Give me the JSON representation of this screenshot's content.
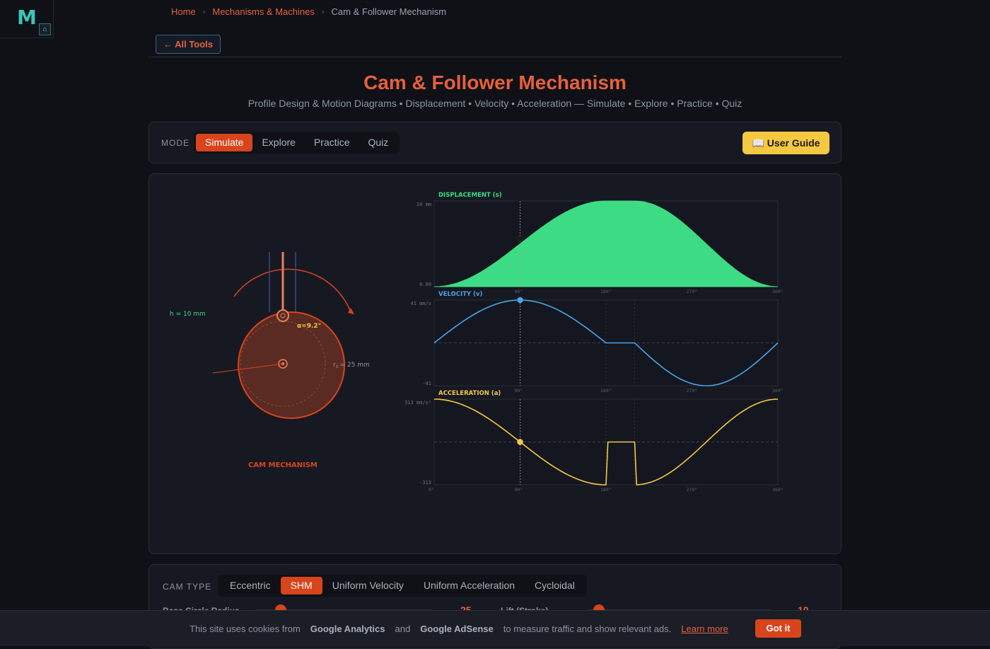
{
  "brand": {
    "logo_letter": "M"
  },
  "breadcrumb": {
    "home": "Home",
    "section": "Mechanisms & Machines",
    "current": "Cam & Follower Mechanism"
  },
  "nav": {
    "all_tools": "← All Tools"
  },
  "header": {
    "title": "Cam & Follower Mechanism",
    "subtitle": "Profile Design & Motion Diagrams • Displacement • Velocity • Acceleration — Simulate • Explore • Practice • Quiz"
  },
  "mode": {
    "label": "MODE",
    "tabs": [
      "Simulate",
      "Explore",
      "Practice",
      "Quiz"
    ],
    "active": "Simulate",
    "guide_label": "📖 User Guide"
  },
  "cam": {
    "lift_label": "h = 10 mm",
    "angle_label": "α=9.2°",
    "radius_label": "r",
    "radius_sub": "0",
    "radius_value": "= 25 mm",
    "caption": "CAM MECHANISM",
    "angle_deg": 9.2
  },
  "chart_data": [
    {
      "type": "area",
      "title": "DISPLACEMENT (s)",
      "ymax_label": "10 mm",
      "ymin_label": "0.00",
      "x_ticks": [
        "90°",
        "180°",
        "270°",
        "360°"
      ],
      "x": [
        0,
        90,
        180,
        210,
        360
      ],
      "y": [
        0,
        5.6,
        10,
        10,
        0
      ],
      "xlim": [
        0,
        360
      ],
      "ylim": [
        0,
        10
      ],
      "marker_x": 90,
      "color": "#3ddc84"
    },
    {
      "type": "line",
      "title": "VELOCITY (v)",
      "ymax_label": "41 mm/s",
      "ymin_label": "-41",
      "x_ticks": [
        "90°",
        "180°",
        "270°",
        "360°"
      ],
      "xlim": [
        0,
        360
      ],
      "ylim": [
        -41,
        41
      ],
      "marker_x": 90,
      "color": "#4aa3e8"
    },
    {
      "type": "line",
      "title": "ACCELERATION (a)",
      "ymax_label": "313 mm/s²",
      "ymin_label": "-313",
      "x_ticks": [
        "0°",
        "90°",
        "180°",
        "270°",
        "360°"
      ],
      "xlim": [
        0,
        360
      ],
      "ylim": [
        -313,
        313
      ],
      "marker_x": 90,
      "color": "#f5c842"
    }
  ],
  "cam_type": {
    "label": "CAM TYPE",
    "tabs": [
      "Eccentric",
      "SHM",
      "Uniform Velocity",
      "Uniform Acceleration",
      "Cycloidal"
    ],
    "active": "SHM",
    "base_radius_label": "Base Circle Radius",
    "base_radius_value": "25",
    "lift_label": "Lift (Stroke)",
    "lift_value": "10"
  },
  "cookie": {
    "text1": "This site uses cookies from",
    "ga": "Google Analytics",
    "and": "and",
    "adsense": "Google AdSense",
    "text2": "to measure traffic and show relevant ads.",
    "learn_more": "Learn more",
    "accept": "Got it"
  }
}
